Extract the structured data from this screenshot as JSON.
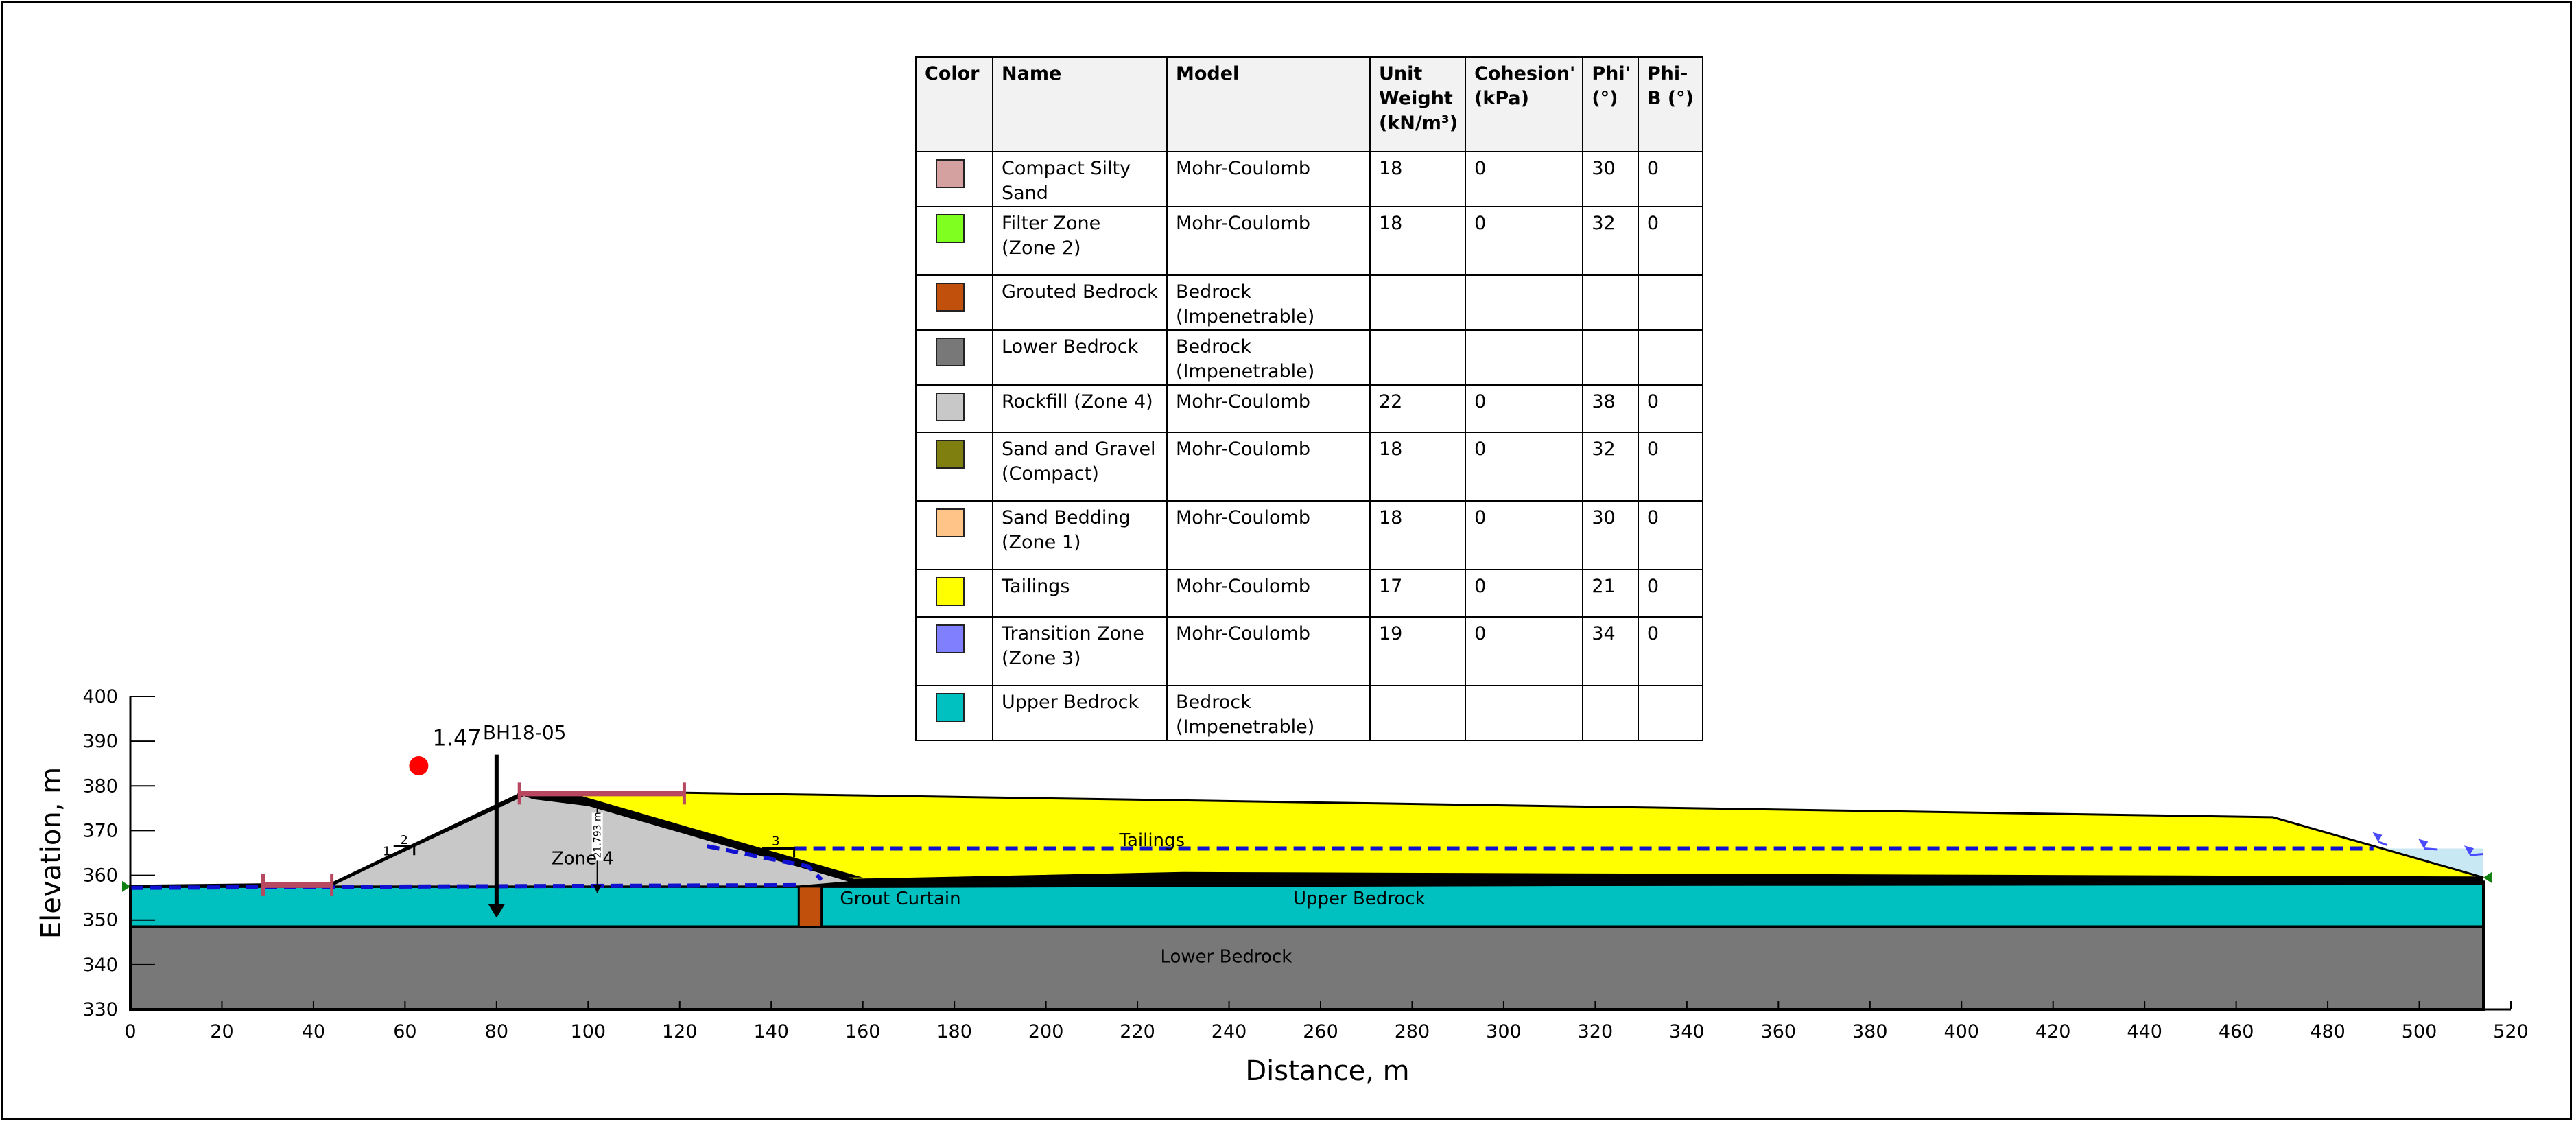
{
  "legend": {
    "headers": {
      "color": "Color",
      "name": "Name",
      "model": "Model",
      "unit_weight": "Unit Weight (kN/m³)",
      "cohesion": "Cohesion' (kPa)",
      "phi": "Phi' (°)",
      "phib": "Phi-B (°)"
    },
    "rows": [
      {
        "color": "#d4a0a0",
        "name": "Compact Silty Sand",
        "model": "Mohr-Coulomb",
        "unit_weight": "18",
        "cohesion": "0",
        "phi": "30",
        "phib": "0"
      },
      {
        "color": "#7fff20",
        "name": "Filter Zone (Zone 2)",
        "model": "Mohr-Coulomb",
        "unit_weight": "18",
        "cohesion": "0",
        "phi": "32",
        "phib": "0"
      },
      {
        "color": "#c0500c",
        "name": "Grouted Bedrock",
        "model": "Bedrock (Impenetrable)",
        "unit_weight": "",
        "cohesion": "",
        "phi": "",
        "phib": ""
      },
      {
        "color": "#787878",
        "name": "Lower Bedrock",
        "model": "Bedrock (Impenetrable)",
        "unit_weight": "",
        "cohesion": "",
        "phi": "",
        "phib": ""
      },
      {
        "color": "#c8c8c8",
        "name": "Rockfill (Zone 4)",
        "model": "Mohr-Coulomb",
        "unit_weight": "22",
        "cohesion": "0",
        "phi": "38",
        "phib": "0"
      },
      {
        "color": "#7f7f10",
        "name": "Sand and Gravel (Compact)",
        "model": "Mohr-Coulomb",
        "unit_weight": "18",
        "cohesion": "0",
        "phi": "32",
        "phib": "0"
      },
      {
        "color": "#ffc488",
        "name": "Sand Bedding (Zone 1)",
        "model": "Mohr-Coulomb",
        "unit_weight": "18",
        "cohesion": "0",
        "phi": "30",
        "phib": "0"
      },
      {
        "color": "#ffff00",
        "name": "Tailings",
        "model": "Mohr-Coulomb",
        "unit_weight": "17",
        "cohesion": "0",
        "phi": "21",
        "phib": "0"
      },
      {
        "color": "#8080ff",
        "name": "Transition Zone (Zone 3)",
        "model": "Mohr-Coulomb",
        "unit_weight": "19",
        "cohesion": "0",
        "phi": "34",
        "phib": "0"
      },
      {
        "color": "#00c0c0",
        "name": "Upper Bedrock",
        "model": "Bedrock (Impenetrable)",
        "unit_weight": "",
        "cohesion": "",
        "phi": "",
        "phib": ""
      }
    ]
  },
  "chart_data": {
    "type": "diagram",
    "xlabel": "Distance, m",
    "ylabel": "Elevation, m",
    "xlim": [
      0,
      520
    ],
    "ylim": [
      330,
      400
    ],
    "x_ticks": [
      "0",
      "20",
      "40",
      "60",
      "80",
      "100",
      "120",
      "140",
      "160",
      "180",
      "200",
      "220",
      "240",
      "260",
      "280",
      "300",
      "320",
      "340",
      "360",
      "380",
      "400",
      "420",
      "440",
      "460",
      "480",
      "500",
      "520"
    ],
    "y_ticks": [
      "400",
      "390",
      "380",
      "370",
      "360",
      "350",
      "340",
      "330"
    ],
    "factor_of_safety": "1.47",
    "borehole_label": "BH18-05",
    "region_labels": {
      "zone4": "Zone 4",
      "tailings": "Tailings",
      "grout_curtain": "Grout Curtain",
      "upper_bedrock": "Upper Bedrock",
      "lower_bedrock": "Lower Bedrock"
    },
    "dimension_label": "21.793 m",
    "slope_labels": {
      "rise": "1",
      "run_left": "2",
      "run_right": "3"
    },
    "colors": {
      "tailings": "#ffff00",
      "rockfill": "#c8c8c8",
      "upper_bedrock": "#00c0c0",
      "lower_bedrock": "#787878",
      "grouted_bedrock": "#c0500c",
      "water_line": "#1010d0",
      "surcharge": "#b84860",
      "pond": "#c8e8f4",
      "critical_point": "#ff0000"
    }
  }
}
